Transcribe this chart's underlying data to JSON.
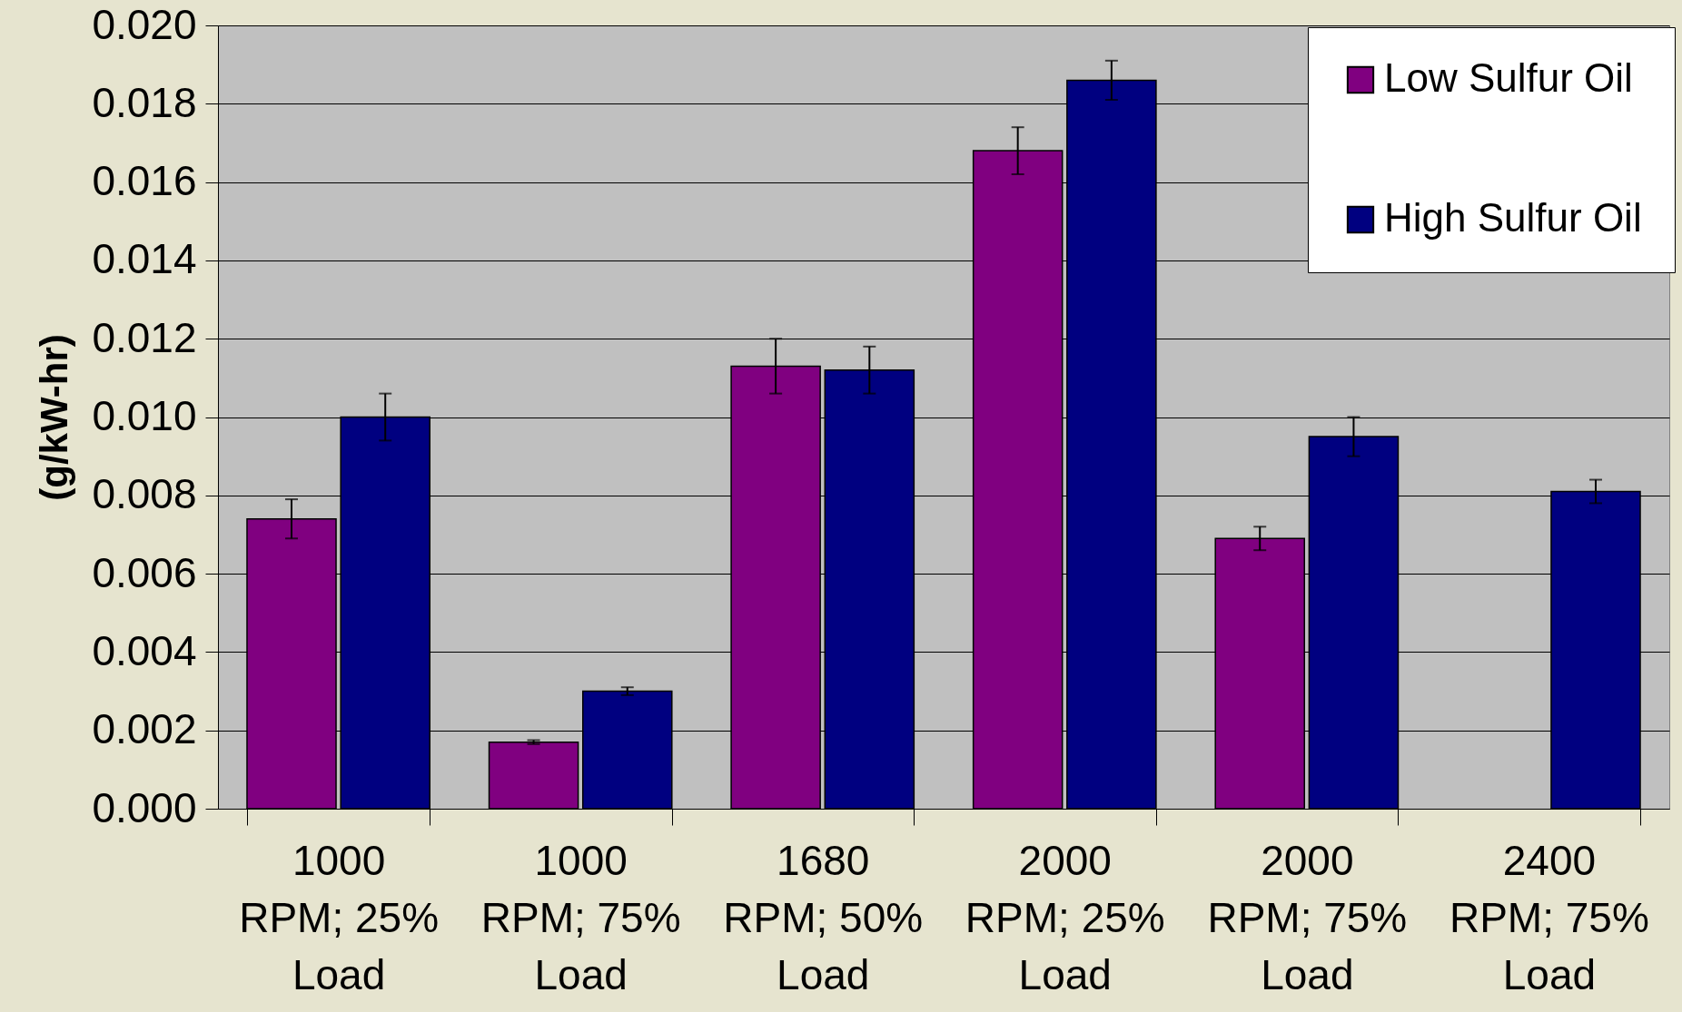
{
  "chart_data": {
    "type": "bar",
    "ylabel": "(g/kW-hr)",
    "categories": [
      "1000\nRPM; 25%\nLoad",
      "1000\nRPM; 75%\nLoad",
      "1680\nRPM; 50%\nLoad",
      "2000\nRPM; 25%\nLoad",
      "2000\nRPM; 75%\nLoad",
      "2400\nRPM; 75%\nLoad"
    ],
    "series": [
      {
        "name": "Low Sulfur Oil",
        "color": "#800080",
        "values": [
          0.0074,
          0.0017,
          0.0113,
          0.0168,
          0.0069,
          null
        ],
        "errors": [
          0.0005,
          5e-05,
          0.0007,
          0.0006,
          0.0003,
          null
        ]
      },
      {
        "name": "High Sulfur Oil",
        "color": "#000080",
        "values": [
          0.01,
          0.003,
          0.0112,
          0.0186,
          0.0095,
          0.0081
        ],
        "errors": [
          0.0006,
          0.0001,
          0.0006,
          0.0005,
          0.0005,
          0.0003
        ]
      }
    ],
    "ylim": [
      0,
      0.02
    ],
    "yticks": [
      {
        "value": 0,
        "label": "0.000"
      },
      {
        "value": 0.002,
        "label": "0.002"
      },
      {
        "value": 0.004,
        "label": "0.004"
      },
      {
        "value": 0.006,
        "label": "0.006"
      },
      {
        "value": 0.008,
        "label": "0.008"
      },
      {
        "value": 0.01,
        "label": "0.010"
      },
      {
        "value": 0.012,
        "label": "0.012"
      },
      {
        "value": 0.014,
        "label": "0.014"
      },
      {
        "value": 0.016,
        "label": "0.016"
      },
      {
        "value": 0.018,
        "label": "0.018"
      },
      {
        "value": 0.02,
        "label": "0.020"
      }
    ],
    "grid": "y",
    "legend": "top right"
  }
}
